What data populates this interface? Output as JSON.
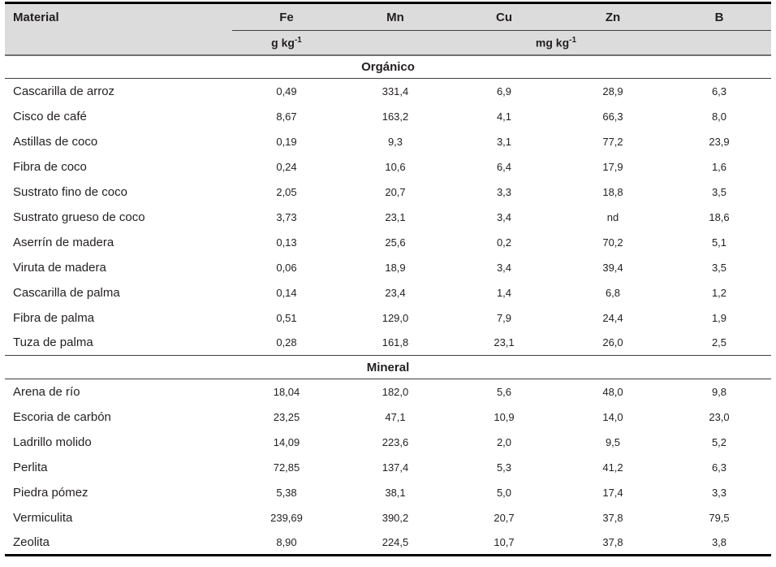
{
  "table": {
    "columns": [
      "Material",
      "Fe",
      "Mn",
      "Cu",
      "Zn",
      "B"
    ],
    "units": {
      "fe_unit": {
        "base": "g kg",
        "sup": "-1"
      },
      "micro_unit": {
        "base": "mg kg",
        "sup": "-1"
      }
    },
    "sections": [
      {
        "title": "Orgánico",
        "rows": [
          {
            "material": "Cascarilla de arroz",
            "values": [
              "0,49",
              "331,4",
              "6,9",
              "28,9",
              "6,3"
            ]
          },
          {
            "material": "Cisco de café",
            "values": [
              "8,67",
              "163,2",
              "4,1",
              "66,3",
              "8,0"
            ]
          },
          {
            "material": "Astillas de coco",
            "values": [
              "0,19",
              "9,3",
              "3,1",
              "77,2",
              "23,9"
            ]
          },
          {
            "material": "Fibra de coco",
            "values": [
              "0,24",
              "10,6",
              "6,4",
              "17,9",
              "1,6"
            ]
          },
          {
            "material": "Sustrato fino de coco",
            "values": [
              "2,05",
              "20,7",
              "3,3",
              "18,8",
              "3,5"
            ]
          },
          {
            "material": "Sustrato grueso de coco",
            "values": [
              "3,73",
              "23,1",
              "3,4",
              "nd",
              "18,6"
            ]
          },
          {
            "material": "Aserrín de madera",
            "values": [
              "0,13",
              "25,6",
              "0,2",
              "70,2",
              "5,1"
            ]
          },
          {
            "material": "Viruta de madera",
            "values": [
              "0,06",
              "18,9",
              "3,4",
              "39,4",
              "3,5"
            ]
          },
          {
            "material": "Cascarilla de palma",
            "values": [
              "0,14",
              "23,4",
              "1,4",
              "6,8",
              "1,2"
            ]
          },
          {
            "material": "Fibra de palma",
            "values": [
              "0,51",
              "129,0",
              "7,9",
              "24,4",
              "1,9"
            ]
          },
          {
            "material": "Tuza de palma",
            "values": [
              "0,28",
              "161,8",
              "23,1",
              "26,0",
              "2,5"
            ]
          }
        ]
      },
      {
        "title": "Mineral",
        "rows": [
          {
            "material": "Arena de río",
            "values": [
              "18,04",
              "182,0",
              "5,6",
              "48,0",
              "9,8"
            ]
          },
          {
            "material": "Escoria de carbón",
            "values": [
              "23,25",
              "47,1",
              "10,9",
              "14,0",
              "23,0"
            ]
          },
          {
            "material": "Ladrillo molido",
            "values": [
              "14,09",
              "223,6",
              "2,0",
              "9,5",
              "5,2"
            ]
          },
          {
            "material": "Perlita",
            "values": [
              "72,85",
              "137,4",
              "5,3",
              "41,2",
              "6,3"
            ]
          },
          {
            "material": "Piedra pómez",
            "values": [
              "5,38",
              "38,1",
              "5,0",
              "17,4",
              "3,3"
            ]
          },
          {
            "material": "Vermiculita",
            "values": [
              "239,69",
              "390,2",
              "20,7",
              "37,8",
              "79,5"
            ]
          },
          {
            "material": "Zeolita",
            "values": [
              "8,90",
              "224,5",
              "10,7",
              "37,8",
              "3,8"
            ]
          }
        ]
      }
    ]
  },
  "colors": {
    "header_bg": "#dcdcdc",
    "text": "#231f20",
    "border_heavy": "#000000",
    "border_header_bottom": "#6e6e6e",
    "border_thin": "#3f3f3f"
  }
}
